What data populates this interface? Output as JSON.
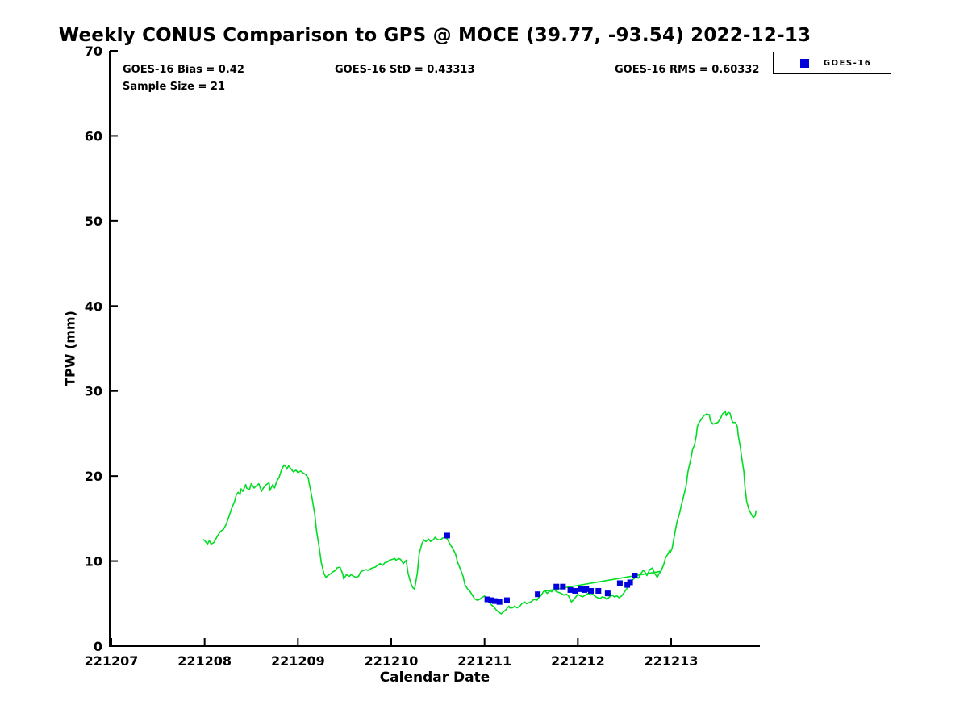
{
  "title": "Weekly CONUS Comparison to GPS @ MOCE (39.77, -93.54) 2022-12-13",
  "annotations": {
    "bias": "GOES-16 Bias = 0.42",
    "std": "GOES-16 StD = 0.43313",
    "rms": "GOES-16 RMS = 0.60332",
    "sample_size": "Sample Size = 21"
  },
  "legend": {
    "entries": [
      {
        "label": "GOES-16",
        "marker": "square",
        "color": "#0000dd"
      }
    ],
    "position": "top-right-outside-plot"
  },
  "colors": {
    "gps_line": "#00dd22",
    "goes_marker": "#0000dd",
    "axis": "#000000",
    "background": "#ffffff"
  },
  "chart_data": {
    "type": "line",
    "title": "Weekly CONUS Comparison to GPS @ MOCE (39.77, -93.54) 2022-12-13",
    "xlabel": "Calendar Date",
    "ylabel": "TPW (mm)",
    "grid": false,
    "legend_position": "top-right",
    "x_unit": "days since 221207",
    "xlim_days": [
      0,
      6.95
    ],
    "ylim": [
      0,
      70
    ],
    "y_ticks": [
      0,
      10,
      20,
      30,
      40,
      50,
      60,
      70
    ],
    "x_tick_days": [
      0,
      1,
      2,
      3,
      4,
      5,
      6
    ],
    "x_tick_labels": [
      "221207",
      "221208",
      "221209",
      "221210",
      "221211",
      "221212",
      "221213"
    ],
    "series": [
      {
        "name": "GPS",
        "type": "line",
        "color": "#00dd22",
        "points": [
          [
            0.99,
            12.5
          ],
          [
            1.01,
            12.3
          ],
          [
            1.03,
            12.0
          ],
          [
            1.05,
            12.4
          ],
          [
            1.07,
            12.0
          ],
          [
            1.1,
            12.2
          ],
          [
            1.14,
            13.0
          ],
          [
            1.17,
            13.5
          ],
          [
            1.2,
            13.7
          ],
          [
            1.23,
            14.3
          ],
          [
            1.26,
            15.2
          ],
          [
            1.29,
            16.2
          ],
          [
            1.32,
            17.0
          ],
          [
            1.34,
            17.8
          ],
          [
            1.36,
            18.1
          ],
          [
            1.38,
            17.8
          ],
          [
            1.39,
            18.5
          ],
          [
            1.41,
            18.2
          ],
          [
            1.44,
            19.0
          ],
          [
            1.45,
            18.6
          ],
          [
            1.48,
            18.4
          ],
          [
            1.5,
            19.1
          ],
          [
            1.53,
            18.6
          ],
          [
            1.56,
            18.9
          ],
          [
            1.58,
            19.1
          ],
          [
            1.61,
            18.2
          ],
          [
            1.63,
            18.6
          ],
          [
            1.66,
            19.0
          ],
          [
            1.69,
            19.2
          ],
          [
            1.7,
            18.3
          ],
          [
            1.73,
            19.0
          ],
          [
            1.75,
            18.6
          ],
          [
            1.77,
            19.3
          ],
          [
            1.8,
            19.9
          ],
          [
            1.82,
            20.6
          ],
          [
            1.85,
            21.3
          ],
          [
            1.87,
            21.1
          ],
          [
            1.88,
            20.8
          ],
          [
            1.9,
            21.2
          ],
          [
            1.93,
            20.8
          ],
          [
            1.95,
            20.5
          ],
          [
            1.98,
            20.7
          ],
          [
            2.0,
            20.4
          ],
          [
            2.03,
            20.6
          ],
          [
            2.05,
            20.4
          ],
          [
            2.08,
            20.2
          ],
          [
            2.11,
            19.8
          ],
          [
            2.12,
            19.2
          ],
          [
            2.15,
            17.5
          ],
          [
            2.18,
            15.5
          ],
          [
            2.2,
            13.5
          ],
          [
            2.23,
            11.5
          ],
          [
            2.25,
            9.8
          ],
          [
            2.28,
            8.5
          ],
          [
            2.3,
            8.1
          ],
          [
            2.32,
            8.3
          ],
          [
            2.35,
            8.5
          ],
          [
            2.37,
            8.7
          ],
          [
            2.4,
            8.9
          ],
          [
            2.42,
            9.2
          ],
          [
            2.45,
            9.3
          ],
          [
            2.48,
            8.5
          ],
          [
            2.49,
            7.9
          ],
          [
            2.52,
            8.4
          ],
          [
            2.55,
            8.2
          ],
          [
            2.57,
            8.4
          ],
          [
            2.6,
            8.2
          ],
          [
            2.62,
            8.1
          ],
          [
            2.65,
            8.2
          ],
          [
            2.67,
            8.7
          ],
          [
            2.7,
            8.9
          ],
          [
            2.73,
            9.0
          ],
          [
            2.75,
            8.9
          ],
          [
            2.78,
            9.1
          ],
          [
            2.8,
            9.2
          ],
          [
            2.83,
            9.3
          ],
          [
            2.85,
            9.5
          ],
          [
            2.88,
            9.7
          ],
          [
            2.91,
            9.5
          ],
          [
            2.93,
            9.8
          ],
          [
            2.96,
            9.9
          ],
          [
            2.98,
            10.1
          ],
          [
            3.01,
            10.2
          ],
          [
            3.04,
            10.3
          ],
          [
            3.05,
            10.1
          ],
          [
            3.08,
            10.3
          ],
          [
            3.1,
            10.2
          ],
          [
            3.13,
            9.7
          ],
          [
            3.16,
            10.1
          ],
          [
            3.18,
            8.6
          ],
          [
            3.21,
            7.4
          ],
          [
            3.23,
            6.9
          ],
          [
            3.25,
            6.7
          ],
          [
            3.28,
            8.6
          ],
          [
            3.3,
            10.9
          ],
          [
            3.33,
            12.1
          ],
          [
            3.35,
            12.5
          ],
          [
            3.37,
            12.3
          ],
          [
            3.4,
            12.6
          ],
          [
            3.42,
            12.3
          ],
          [
            3.45,
            12.5
          ],
          [
            3.47,
            12.8
          ],
          [
            3.5,
            12.5
          ],
          [
            3.53,
            12.5
          ],
          [
            3.55,
            12.7
          ],
          [
            3.58,
            12.8
          ],
          [
            3.6,
            12.6
          ],
          [
            3.62,
            12.2
          ],
          [
            3.64,
            11.8
          ],
          [
            3.66,
            11.5
          ],
          [
            3.69,
            10.8
          ],
          [
            3.71,
            9.9
          ],
          [
            3.74,
            9.1
          ],
          [
            3.77,
            8.2
          ],
          [
            3.79,
            7.2
          ],
          [
            3.82,
            6.7
          ],
          [
            3.84,
            6.5
          ],
          [
            3.87,
            6.0
          ],
          [
            3.89,
            5.6
          ],
          [
            3.92,
            5.4
          ],
          [
            3.95,
            5.5
          ],
          [
            3.97,
            5.7
          ],
          [
            4.0,
            5.9
          ],
          [
            4.02,
            5.5
          ],
          [
            4.05,
            5.1
          ],
          [
            4.08,
            4.8
          ],
          [
            4.1,
            4.6
          ],
          [
            4.13,
            4.2
          ],
          [
            4.15,
            4.0
          ],
          [
            4.18,
            3.8
          ],
          [
            4.2,
            4.0
          ],
          [
            4.23,
            4.3
          ],
          [
            4.26,
            4.7
          ],
          [
            4.27,
            4.5
          ],
          [
            4.3,
            4.5
          ],
          [
            4.32,
            4.7
          ],
          [
            4.35,
            4.5
          ],
          [
            4.38,
            4.7
          ],
          [
            4.4,
            5.0
          ],
          [
            4.43,
            5.2
          ],
          [
            4.45,
            5.0
          ],
          [
            4.48,
            5.1
          ],
          [
            4.51,
            5.3
          ],
          [
            4.53,
            5.5
          ],
          [
            4.56,
            5.4
          ],
          [
            4.58,
            5.7
          ],
          [
            4.61,
            6.0
          ],
          [
            4.63,
            6.4
          ],
          [
            4.65,
            6.5
          ],
          [
            4.67,
            6.2
          ],
          [
            4.7,
            6.5
          ],
          [
            4.72,
            6.4
          ],
          [
            4.75,
            6.7
          ],
          [
            4.77,
            6.4
          ],
          [
            4.8,
            6.3
          ],
          [
            4.82,
            6.2
          ],
          [
            4.85,
            6.0
          ],
          [
            4.88,
            6.1
          ],
          [
            4.9,
            5.9
          ],
          [
            4.93,
            5.2
          ],
          [
            4.95,
            5.4
          ],
          [
            4.98,
            5.8
          ],
          [
            5.0,
            6.1
          ],
          [
            5.03,
            5.9
          ],
          [
            5.05,
            5.8
          ],
          [
            5.08,
            6.0
          ],
          [
            5.11,
            6.2
          ],
          [
            5.13,
            6.0
          ],
          [
            5.16,
            6.1
          ],
          [
            5.18,
            5.9
          ],
          [
            5.21,
            5.7
          ],
          [
            5.24,
            5.6
          ],
          [
            5.26,
            5.8
          ],
          [
            5.29,
            5.7
          ],
          [
            5.31,
            5.5
          ],
          [
            5.34,
            5.8
          ],
          [
            5.37,
            6.0
          ],
          [
            5.39,
            5.8
          ],
          [
            5.42,
            5.9
          ],
          [
            5.44,
            5.7
          ],
          [
            5.47,
            5.9
          ],
          [
            5.49,
            6.2
          ],
          [
            5.52,
            6.7
          ],
          [
            5.55,
            7.2
          ],
          [
            5.57,
            7.7
          ],
          [
            5.6,
            7.9
          ],
          [
            5.62,
            8.2
          ],
          [
            5.65,
            8.0
          ],
          [
            5.68,
            8.6
          ],
          [
            5.7,
            8.9
          ],
          [
            5.72,
            8.7
          ],
          [
            5.74,
            8.3
          ],
          [
            5.77,
            9.0
          ],
          [
            5.8,
            9.2
          ],
          [
            5.82,
            8.6
          ],
          [
            5.85,
            8.1
          ],
          [
            5.87,
            8.5
          ],
          [
            5.89,
            8.8
          ],
          [
            5.92,
            9.6
          ],
          [
            5.94,
            10.4
          ],
          [
            5.97,
            10.9
          ],
          [
            5.98,
            11.2
          ],
          [
            5.99,
            11.0
          ],
          [
            6.01,
            11.5
          ],
          [
            6.04,
            13.3
          ],
          [
            6.06,
            14.5
          ],
          [
            6.09,
            15.6
          ],
          [
            6.11,
            16.6
          ],
          [
            6.13,
            17.5
          ],
          [
            6.16,
            18.8
          ],
          [
            6.18,
            20.5
          ],
          [
            6.2,
            21.5
          ],
          [
            6.22,
            22.5
          ],
          [
            6.23,
            23.2
          ],
          [
            6.25,
            23.6
          ],
          [
            6.27,
            24.8
          ],
          [
            6.28,
            25.8
          ],
          [
            6.3,
            26.3
          ],
          [
            6.33,
            26.8
          ],
          [
            6.35,
            27.1
          ],
          [
            6.38,
            27.3
          ],
          [
            6.41,
            27.2
          ],
          [
            6.42,
            26.5
          ],
          [
            6.45,
            26.1
          ],
          [
            6.47,
            26.2
          ],
          [
            6.5,
            26.3
          ],
          [
            6.53,
            26.8
          ],
          [
            6.55,
            27.3
          ],
          [
            6.58,
            27.6
          ],
          [
            6.59,
            27.1
          ],
          [
            6.61,
            27.5
          ],
          [
            6.63,
            27.4
          ],
          [
            6.65,
            26.6
          ],
          [
            6.66,
            26.3
          ],
          [
            6.69,
            26.3
          ],
          [
            6.71,
            25.8
          ],
          [
            6.72,
            24.7
          ],
          [
            6.74,
            23.5
          ],
          [
            6.76,
            21.9
          ],
          [
            6.78,
            20.5
          ],
          [
            6.79,
            18.8
          ],
          [
            6.81,
            17.0
          ],
          [
            6.83,
            16.2
          ],
          [
            6.84,
            15.9
          ],
          [
            6.86,
            15.5
          ],
          [
            6.88,
            15.1
          ],
          [
            6.9,
            15.3
          ],
          [
            6.91,
            15.9
          ]
        ]
      },
      {
        "name": "GPS-gap-segment",
        "type": "line",
        "color": "#00dd22",
        "points": [
          [
            4.66,
            6.5
          ],
          [
            5.89,
            8.8
          ]
        ]
      },
      {
        "name": "GOES-16",
        "type": "scatter",
        "marker": "square",
        "color": "#0000dd",
        "points": [
          [
            3.6,
            13.0
          ],
          [
            4.03,
            5.5
          ],
          [
            4.07,
            5.4
          ],
          [
            4.11,
            5.3
          ],
          [
            4.16,
            5.2
          ],
          [
            4.24,
            5.4
          ],
          [
            4.57,
            6.1
          ],
          [
            4.77,
            7.0
          ],
          [
            4.84,
            7.0
          ],
          [
            4.92,
            6.6
          ],
          [
            4.97,
            6.5
          ],
          [
            5.03,
            6.7
          ],
          [
            5.07,
            6.6
          ],
          [
            5.09,
            6.7
          ],
          [
            5.14,
            6.5
          ],
          [
            5.22,
            6.5
          ],
          [
            5.32,
            6.2
          ],
          [
            5.45,
            7.4
          ],
          [
            5.53,
            7.2
          ],
          [
            5.56,
            7.5
          ],
          [
            5.61,
            8.3
          ]
        ]
      }
    ]
  }
}
